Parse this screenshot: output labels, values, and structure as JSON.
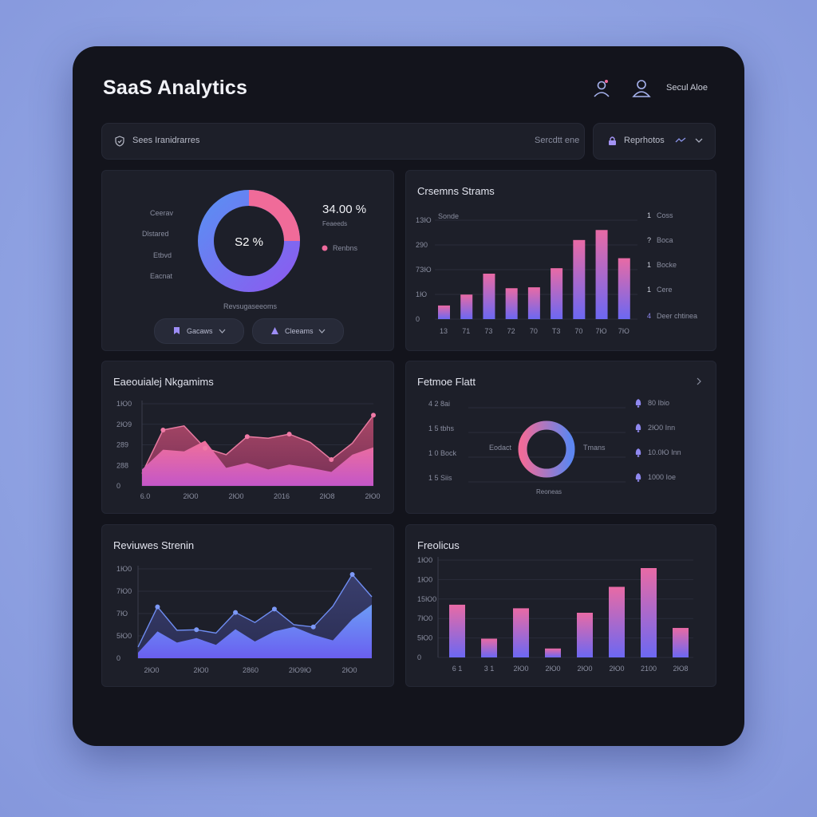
{
  "header": {
    "title": "SaaS Analytics",
    "user_label": "Secul Aloe",
    "icons": [
      "user-icon",
      "profile-icon"
    ]
  },
  "search": {
    "label": "Sees Iranidrarres",
    "action": "Sercdtt ene"
  },
  "filter": {
    "label": "Reprhotos"
  },
  "donut_card": {
    "center_value": "S2 %",
    "big_value": "34.00 %",
    "sub_label": "Feaeeds",
    "legend_label": "Renbns",
    "left_labels": [
      "Ceerav",
      "Dlstared",
      "Etbvd",
      "Eacnat"
    ],
    "caption": "Revsugaseeoms",
    "pill_1": "Gacaws",
    "pill_2": "Cleeams",
    "colors": {
      "pink": "#ee6a9c",
      "blue": "#5b78f0",
      "purple": "#7a5cf0"
    }
  },
  "customer_streams": {
    "title": "Crsemns Strams",
    "series_label": "Sonde",
    "y_ticks": [
      "1ЗЮ",
      "290",
      "7ЗЮ",
      "1Ю",
      "0"
    ],
    "x_ticks": [
      "13",
      "71",
      "73",
      "72",
      "70",
      "T3",
      "70",
      "7Ю",
      "7Ю"
    ],
    "right_legend": [
      {
        "num": "1",
        "label": "Coss"
      },
      {
        "num": "?",
        "label": "Boca"
      },
      {
        "num": "1",
        "label": "Bocke"
      },
      {
        "num": "1",
        "label": "Cere"
      },
      {
        "num": "4",
        "label": "Deer chtinea"
      }
    ],
    "chart_data": {
      "type": "bar",
      "values": [
        0.15,
        0.27,
        0.5,
        0.34,
        0.35,
        0.56,
        0.87,
        0.98,
        0.67
      ]
    }
  },
  "engagement": {
    "title": "Eaeouialej Nkgamims",
    "y_ticks": [
      "1Ю0",
      "2Ю9",
      "289",
      "288",
      "0"
    ],
    "x_ticks": [
      "6.0",
      "2Ю0",
      "2Ю0",
      "2016",
      "2Ю8",
      "2Ю0"
    ],
    "chart_data": {
      "type": "area",
      "x": [
        0,
        1,
        2,
        3,
        4,
        5,
        6,
        7,
        8,
        9,
        10,
        11
      ],
      "series": [
        {
          "values": [
            15,
            68,
            73,
            46,
            38,
            60,
            58,
            63,
            53,
            32,
            52,
            86
          ]
        },
        {
          "values": [
            20,
            44,
            42,
            55,
            22,
            28,
            20,
            26,
            22,
            17,
            38,
            47
          ]
        }
      ]
    }
  },
  "feature_flat": {
    "title": "Fetmoe Flatt",
    "left_rows": [
      "4 2 8ai",
      "1 5 tbhs",
      "1 0 Bock",
      "1 5 Siis"
    ],
    "left_label": "Eodact",
    "right_label": "Tmans",
    "caption": "Reoneas",
    "right_rows": [
      "80 Ibio",
      "2Ю0 Inn",
      "10.0Ю Inn",
      "1000 Ioe"
    ]
  },
  "revenue_streams": {
    "title": "Reviuwes Strenin",
    "y_ticks": [
      "1Ю0",
      "7Ю0",
      "7Ю",
      "5Ю0",
      "0"
    ],
    "x_ticks": [
      "2Ю0",
      "2Ю0",
      "2860",
      "2Ю9Ю",
      "2Ю0"
    ],
    "chart_data": {
      "type": "line",
      "x": [
        0,
        1,
        2,
        3,
        4,
        5,
        6,
        7,
        8,
        9,
        10,
        11,
        12
      ],
      "series": [
        {
          "values": [
            20,
            92,
            50,
            51,
            45,
            82,
            64,
            88,
            60,
            56,
            93,
            150,
            110
          ]
        },
        {
          "values": [
            10,
            48,
            28,
            36,
            24,
            52,
            30,
            48,
            56,
            42,
            32,
            70,
            96
          ]
        }
      ]
    }
  },
  "predictions": {
    "title": "Freolicus",
    "y_ticks": [
      "1Ю0",
      "1Ю0",
      "15Ю0",
      "7Ю0",
      "5Ю0",
      "0"
    ],
    "x_ticks": [
      "6 1",
      "3 1",
      "2Ю0",
      "2Ю0",
      "2Ю0",
      "2Ю0",
      "2100",
      "2Ю8"
    ],
    "chart_data": {
      "type": "bar",
      "values": [
        0.59,
        0.21,
        0.55,
        0.1,
        0.5,
        0.79,
        1.0,
        0.33
      ]
    }
  }
}
